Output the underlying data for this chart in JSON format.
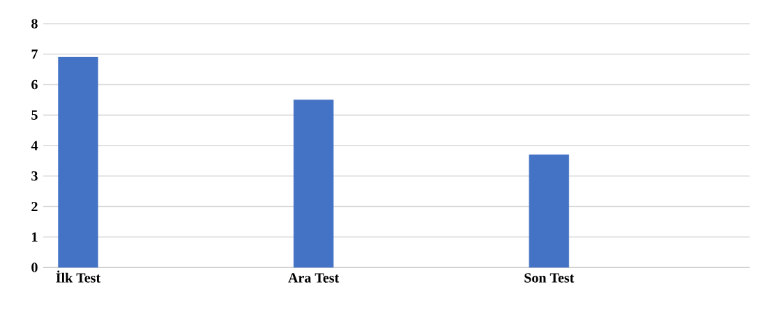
{
  "chart_data": {
    "type": "bar",
    "categories": [
      "İlk Test",
      "Ara Test",
      "Son Test"
    ],
    "values": [
      6.9,
      5.5,
      3.7
    ],
    "color": "#4472c4",
    "ylim": [
      0,
      8
    ],
    "yticks": [
      0,
      1,
      2,
      3,
      4,
      5,
      6,
      7,
      8
    ],
    "grid": "y"
  }
}
